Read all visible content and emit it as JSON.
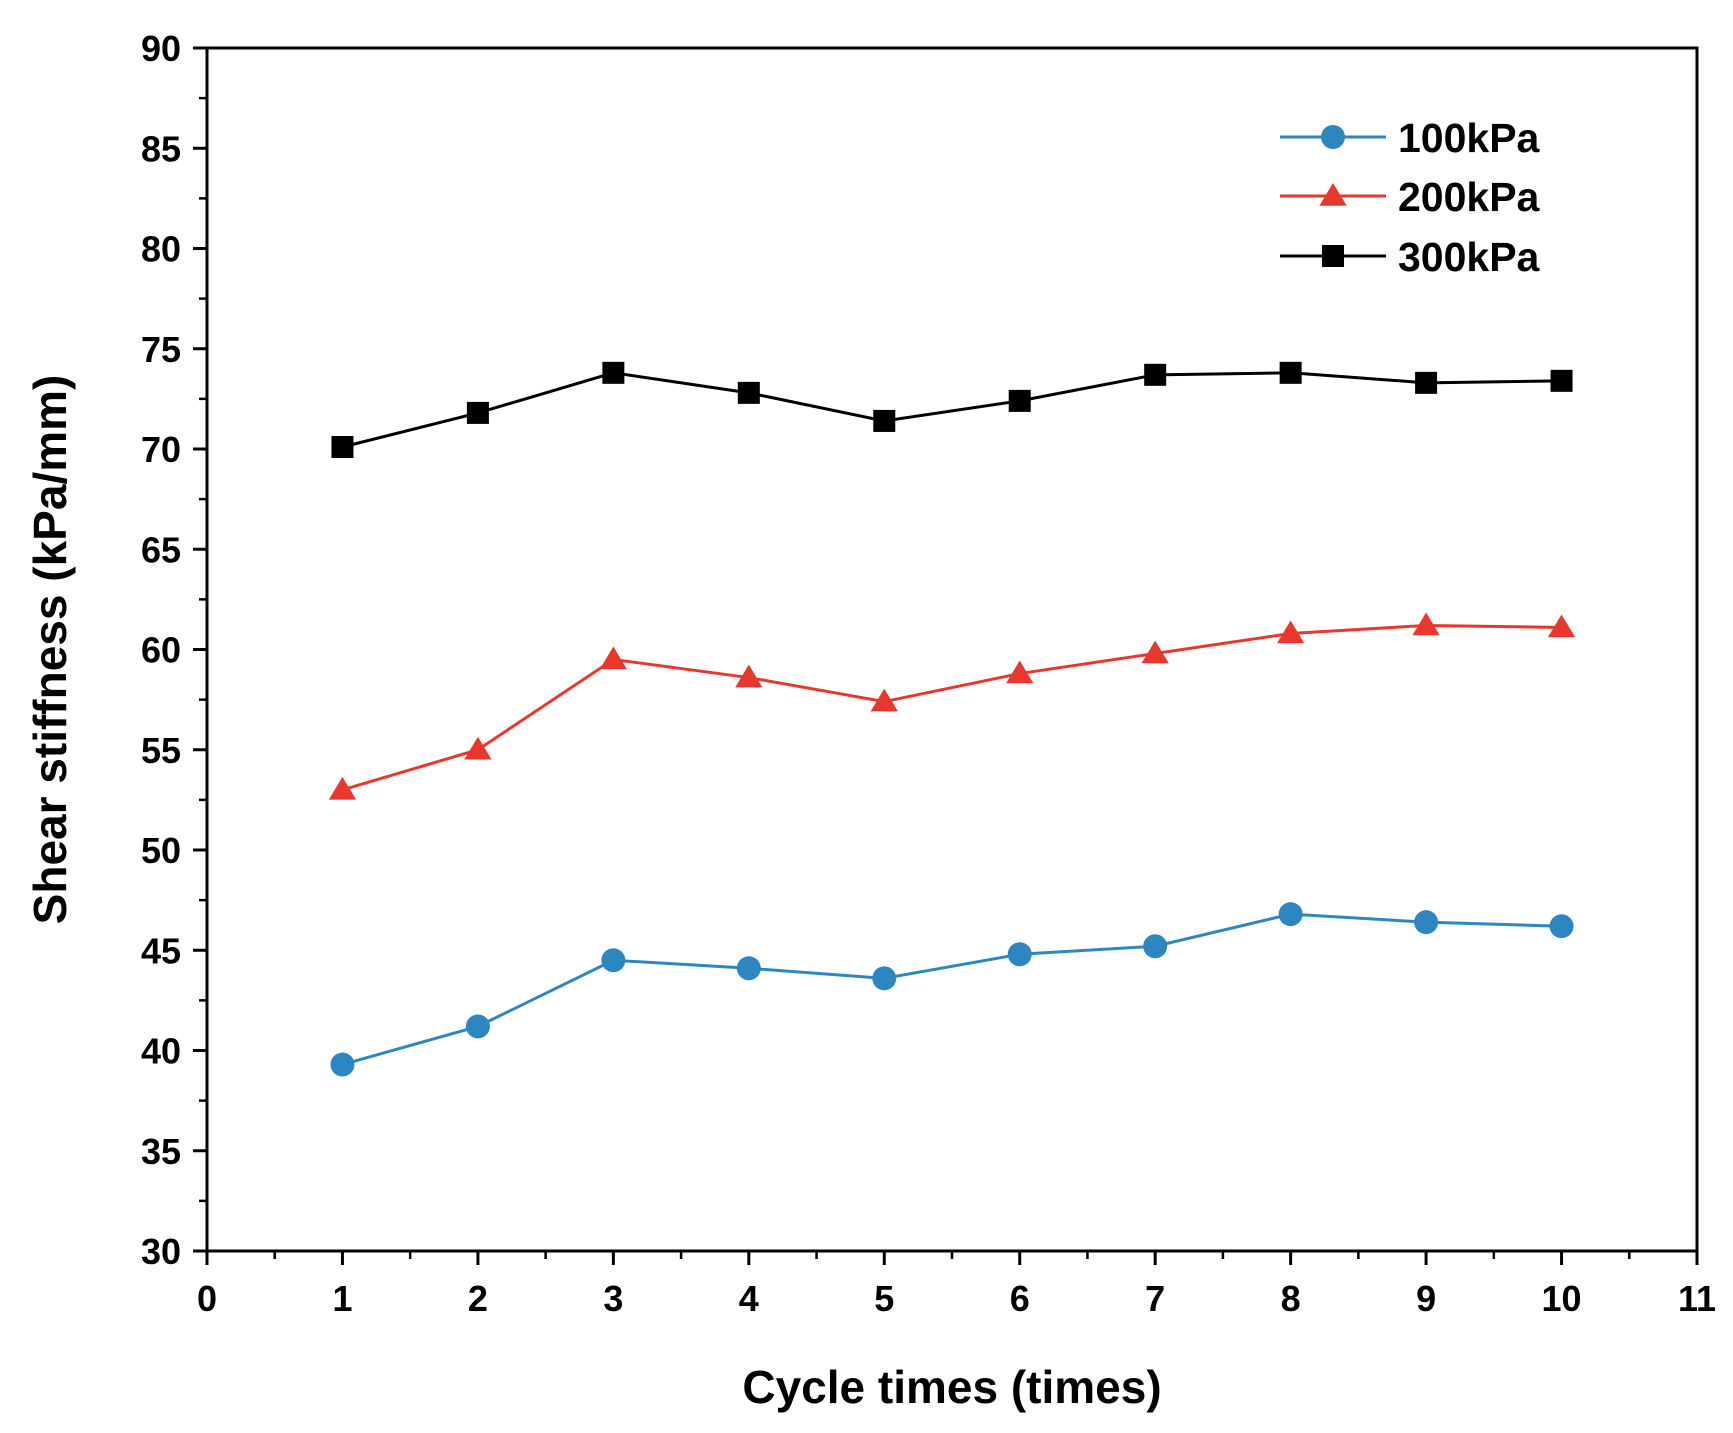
{
  "chart_data": {
    "type": "line",
    "title": "",
    "xlabel": "Cycle times (times)",
    "ylabel": "Shear stiffness (kPa/mm)",
    "xlim": [
      0,
      11
    ],
    "ylim": [
      30,
      90
    ],
    "xticks": [
      "0",
      "1",
      "2",
      "3",
      "4",
      "5",
      "6",
      "7",
      "8",
      "9",
      "10",
      "11"
    ],
    "yticks": [
      "30",
      "35",
      "40",
      "45",
      "50",
      "55",
      "60",
      "65",
      "70",
      "75",
      "80",
      "85",
      "90"
    ],
    "grid": false,
    "legend_position": "top-right",
    "x": [
      1,
      2,
      3,
      4,
      5,
      6,
      7,
      8,
      9,
      10
    ],
    "series": [
      {
        "name": "100kPa",
        "marker": "circle",
        "color": "#2e86c1",
        "values": [
          39.3,
          41.2,
          44.5,
          44.1,
          43.6,
          44.8,
          45.2,
          46.8,
          46.4,
          46.2
        ]
      },
      {
        "name": "200kPa",
        "marker": "triangle",
        "color": "#e8382e",
        "values": [
          53.0,
          55.0,
          59.5,
          58.6,
          57.4,
          58.8,
          59.8,
          60.8,
          61.2,
          61.1
        ]
      },
      {
        "name": "300kPa",
        "marker": "square",
        "color": "#000000",
        "values": [
          70.1,
          71.8,
          73.8,
          72.8,
          71.4,
          72.4,
          73.7,
          73.8,
          73.3,
          73.4
        ]
      }
    ]
  }
}
